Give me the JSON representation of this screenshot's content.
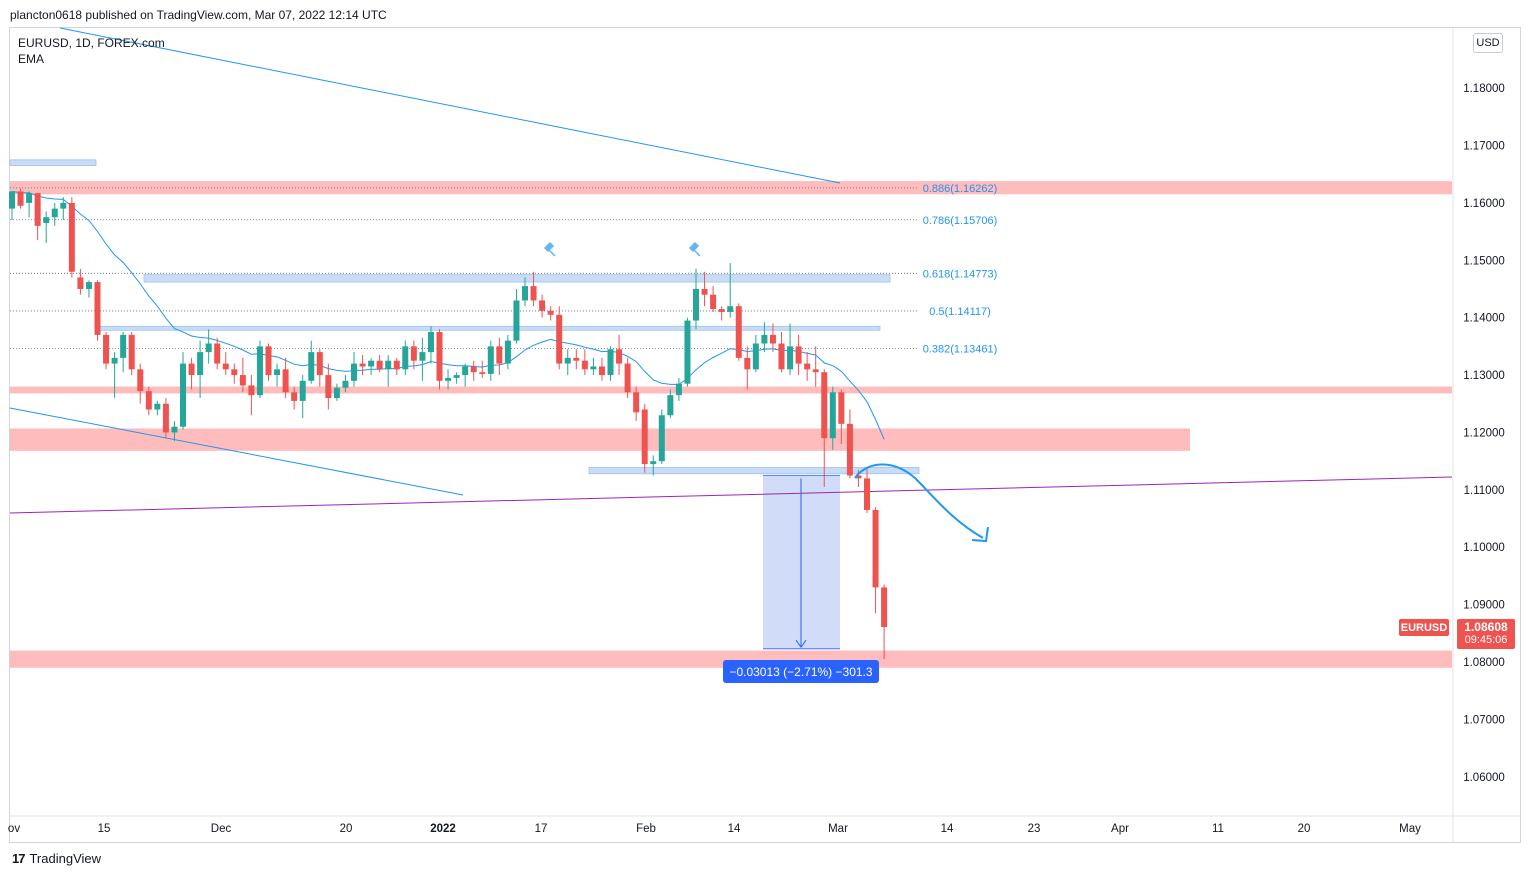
{
  "header": {
    "published": "plancton0618 published on TradingView.com, Mar 07, 2022 12:14 UTC"
  },
  "legend": {
    "symbol": "EURUSD, 1D, FOREX.com",
    "indicator": "EMA"
  },
  "currency_badge": "USD",
  "symbol_label": "EURUSD",
  "last_price": "1.08608",
  "countdown": "09:45:06",
  "measure_label": "−0.03013 (−2.71%) −301.3",
  "footer": {
    "brand": "TradingView"
  },
  "colors": {
    "bull": "#26a69a",
    "bear": "#ef5350",
    "zone_red": "#ffbcbc",
    "zone_blue": "#c8dcf5",
    "line_blue": "#2196f3",
    "line_purple": "#9c27b0",
    "fib": "#2196f3",
    "measure": "#2962ff"
  },
  "chart_data": {
    "type": "candlestick",
    "symbol": "EURUSD",
    "timeframe": "1D",
    "ylim": [
      1.053,
      1.1896
    ],
    "y_ticks": [
      "1.18000",
      "1.17000",
      "1.16000",
      "1.15000",
      "1.14000",
      "1.13000",
      "1.12000",
      "1.11000",
      "1.10000",
      "1.09000",
      "1.08000",
      "1.07000",
      "1.06000"
    ],
    "x_ticks": [
      "ov",
      "15",
      "Dec",
      "20",
      "2022",
      "17",
      "Feb",
      "14",
      "Mar",
      "14",
      "23",
      "Apr",
      "11",
      "20",
      "May"
    ],
    "fib_levels": [
      {
        "label": "0.886(1.16262)",
        "value": 1.16262
      },
      {
        "label": "0.786(1.15706)",
        "value": 1.15706
      },
      {
        "label": "0.618(1.14773)",
        "value": 1.14773
      },
      {
        "label": "0.5(1.14117)",
        "value": 1.14117
      },
      {
        "label": "0.382(1.13461)",
        "value": 1.13461
      }
    ],
    "candles": [
      {
        "o": 1.159,
        "h": 1.162,
        "l": 1.157,
        "c": 1.162
      },
      {
        "o": 1.162,
        "h": 1.1625,
        "l": 1.159,
        "c": 1.1595
      },
      {
        "o": 1.16,
        "h": 1.162,
        "l": 1.1575,
        "c": 1.1617
      },
      {
        "o": 1.1617,
        "h": 1.1617,
        "l": 1.1535,
        "c": 1.156
      },
      {
        "o": 1.1565,
        "h": 1.1585,
        "l": 1.153,
        "c": 1.1575
      },
      {
        "o": 1.1575,
        "h": 1.16,
        "l": 1.156,
        "c": 1.159
      },
      {
        "o": 1.159,
        "h": 1.161,
        "l": 1.157,
        "c": 1.16
      },
      {
        "o": 1.16,
        "h": 1.161,
        "l": 1.147,
        "c": 1.148
      },
      {
        "o": 1.147,
        "h": 1.1485,
        "l": 1.144,
        "c": 1.145
      },
      {
        "o": 1.145,
        "h": 1.1465,
        "l": 1.1435,
        "c": 1.1462
      },
      {
        "o": 1.1462,
        "h": 1.1465,
        "l": 1.136,
        "c": 1.137
      },
      {
        "o": 1.137,
        "h": 1.1375,
        "l": 1.131,
        "c": 1.132
      },
      {
        "o": 1.132,
        "h": 1.134,
        "l": 1.126,
        "c": 1.133
      },
      {
        "o": 1.133,
        "h": 1.1375,
        "l": 1.1305,
        "c": 1.137
      },
      {
        "o": 1.137,
        "h": 1.1375,
        "l": 1.13,
        "c": 1.131
      },
      {
        "o": 1.131,
        "h": 1.132,
        "l": 1.125,
        "c": 1.1272
      },
      {
        "o": 1.1272,
        "h": 1.128,
        "l": 1.123,
        "c": 1.124
      },
      {
        "o": 1.124,
        "h": 1.1255,
        "l": 1.123,
        "c": 1.125
      },
      {
        "o": 1.125,
        "h": 1.126,
        "l": 1.119,
        "c": 1.12
      },
      {
        "o": 1.12,
        "h": 1.122,
        "l": 1.1185,
        "c": 1.121
      },
      {
        "o": 1.121,
        "h": 1.134,
        "l": 1.1205,
        "c": 1.132
      },
      {
        "o": 1.132,
        "h": 1.133,
        "l": 1.1275,
        "c": 1.13
      },
      {
        "o": 1.13,
        "h": 1.136,
        "l": 1.126,
        "c": 1.134
      },
      {
        "o": 1.134,
        "h": 1.138,
        "l": 1.132,
        "c": 1.1355
      },
      {
        "o": 1.1355,
        "h": 1.1365,
        "l": 1.131,
        "c": 1.132
      },
      {
        "o": 1.132,
        "h": 1.134,
        "l": 1.13,
        "c": 1.131
      },
      {
        "o": 1.131,
        "h": 1.132,
        "l": 1.1285,
        "c": 1.13
      },
      {
        "o": 1.13,
        "h": 1.133,
        "l": 1.127,
        "c": 1.1282
      },
      {
        "o": 1.1282,
        "h": 1.13,
        "l": 1.123,
        "c": 1.1265
      },
      {
        "o": 1.1265,
        "h": 1.136,
        "l": 1.126,
        "c": 1.135
      },
      {
        "o": 1.135,
        "h": 1.1355,
        "l": 1.129,
        "c": 1.13
      },
      {
        "o": 1.13,
        "h": 1.132,
        "l": 1.128,
        "c": 1.131
      },
      {
        "o": 1.131,
        "h": 1.133,
        "l": 1.126,
        "c": 1.127
      },
      {
        "o": 1.127,
        "h": 1.128,
        "l": 1.124,
        "c": 1.1255
      },
      {
        "o": 1.1255,
        "h": 1.13,
        "l": 1.1225,
        "c": 1.129
      },
      {
        "o": 1.129,
        "h": 1.136,
        "l": 1.1285,
        "c": 1.134
      },
      {
        "o": 1.134,
        "h": 1.1345,
        "l": 1.128,
        "c": 1.13
      },
      {
        "o": 1.13,
        "h": 1.132,
        "l": 1.124,
        "c": 1.126
      },
      {
        "o": 1.126,
        "h": 1.1285,
        "l": 1.1255,
        "c": 1.1278
      },
      {
        "o": 1.1278,
        "h": 1.13,
        "l": 1.127,
        "c": 1.129
      },
      {
        "o": 1.129,
        "h": 1.134,
        "l": 1.128,
        "c": 1.132
      },
      {
        "o": 1.132,
        "h": 1.1335,
        "l": 1.13,
        "c": 1.1315
      },
      {
        "o": 1.1315,
        "h": 1.133,
        "l": 1.13,
        "c": 1.1325
      },
      {
        "o": 1.1325,
        "h": 1.1335,
        "l": 1.1305,
        "c": 1.131
      },
      {
        "o": 1.131,
        "h": 1.1335,
        "l": 1.128,
        "c": 1.1325
      },
      {
        "o": 1.1325,
        "h": 1.133,
        "l": 1.13,
        "c": 1.131
      },
      {
        "o": 1.131,
        "h": 1.136,
        "l": 1.13,
        "c": 1.135
      },
      {
        "o": 1.135,
        "h": 1.136,
        "l": 1.131,
        "c": 1.1325
      },
      {
        "o": 1.1325,
        "h": 1.1365,
        "l": 1.129,
        "c": 1.134
      },
      {
        "o": 1.134,
        "h": 1.1385,
        "l": 1.132,
        "c": 1.1375
      },
      {
        "o": 1.1375,
        "h": 1.138,
        "l": 1.1275,
        "c": 1.129
      },
      {
        "o": 1.129,
        "h": 1.131,
        "l": 1.1275,
        "c": 1.1295
      },
      {
        "o": 1.1295,
        "h": 1.1305,
        "l": 1.1285,
        "c": 1.13
      },
      {
        "o": 1.13,
        "h": 1.132,
        "l": 1.128,
        "c": 1.1315
      },
      {
        "o": 1.1315,
        "h": 1.1325,
        "l": 1.129,
        "c": 1.1305
      },
      {
        "o": 1.1305,
        "h": 1.1325,
        "l": 1.1295,
        "c": 1.1302
      },
      {
        "o": 1.1302,
        "h": 1.136,
        "l": 1.129,
        "c": 1.135
      },
      {
        "o": 1.135,
        "h": 1.1365,
        "l": 1.13,
        "c": 1.132
      },
      {
        "o": 1.132,
        "h": 1.137,
        "l": 1.131,
        "c": 1.136
      },
      {
        "o": 1.136,
        "h": 1.145,
        "l": 1.1355,
        "c": 1.143
      },
      {
        "o": 1.143,
        "h": 1.147,
        "l": 1.142,
        "c": 1.1455
      },
      {
        "o": 1.1455,
        "h": 1.148,
        "l": 1.142,
        "c": 1.143
      },
      {
        "o": 1.143,
        "h": 1.144,
        "l": 1.14,
        "c": 1.1412
      },
      {
        "o": 1.1412,
        "h": 1.142,
        "l": 1.1395,
        "c": 1.1405
      },
      {
        "o": 1.1405,
        "h": 1.142,
        "l": 1.131,
        "c": 1.132
      },
      {
        "o": 1.132,
        "h": 1.1345,
        "l": 1.13,
        "c": 1.133
      },
      {
        "o": 1.133,
        "h": 1.1345,
        "l": 1.131,
        "c": 1.1325
      },
      {
        "o": 1.1325,
        "h": 1.1345,
        "l": 1.13,
        "c": 1.131
      },
      {
        "o": 1.131,
        "h": 1.133,
        "l": 1.13,
        "c": 1.1315
      },
      {
        "o": 1.1315,
        "h": 1.133,
        "l": 1.129,
        "c": 1.13
      },
      {
        "o": 1.13,
        "h": 1.135,
        "l": 1.129,
        "c": 1.1345
      },
      {
        "o": 1.1345,
        "h": 1.137,
        "l": 1.13,
        "c": 1.132
      },
      {
        "o": 1.132,
        "h": 1.133,
        "l": 1.126,
        "c": 1.127
      },
      {
        "o": 1.127,
        "h": 1.128,
        "l": 1.122,
        "c": 1.1235
      },
      {
        "o": 1.124,
        "h": 1.125,
        "l": 1.113,
        "c": 1.1145
      },
      {
        "o": 1.1145,
        "h": 1.116,
        "l": 1.1125,
        "c": 1.115
      },
      {
        "o": 1.115,
        "h": 1.124,
        "l": 1.1145,
        "c": 1.123
      },
      {
        "o": 1.123,
        "h": 1.1275,
        "l": 1.1225,
        "c": 1.1265
      },
      {
        "o": 1.1265,
        "h": 1.1295,
        "l": 1.1255,
        "c": 1.1285
      },
      {
        "o": 1.1285,
        "h": 1.14,
        "l": 1.128,
        "c": 1.1395
      },
      {
        "o": 1.1395,
        "h": 1.1485,
        "l": 1.138,
        "c": 1.145
      },
      {
        "o": 1.145,
        "h": 1.148,
        "l": 1.142,
        "c": 1.144
      },
      {
        "o": 1.144,
        "h": 1.1455,
        "l": 1.141,
        "c": 1.1415
      },
      {
        "o": 1.1415,
        "h": 1.142,
        "l": 1.1395,
        "c": 1.141
      },
      {
        "o": 1.141,
        "h": 1.1495,
        "l": 1.14,
        "c": 1.142
      },
      {
        "o": 1.142,
        "h": 1.1425,
        "l": 1.1325,
        "c": 1.133
      },
      {
        "o": 1.133,
        "h": 1.135,
        "l": 1.1275,
        "c": 1.131
      },
      {
        "o": 1.131,
        "h": 1.137,
        "l": 1.1305,
        "c": 1.1355
      },
      {
        "o": 1.1355,
        "h": 1.1392,
        "l": 1.134,
        "c": 1.137
      },
      {
        "o": 1.137,
        "h": 1.139,
        "l": 1.134,
        "c": 1.1355
      },
      {
        "o": 1.1355,
        "h": 1.1375,
        "l": 1.1305,
        "c": 1.131
      },
      {
        "o": 1.131,
        "h": 1.139,
        "l": 1.13,
        "c": 1.135
      },
      {
        "o": 1.135,
        "h": 1.137,
        "l": 1.13,
        "c": 1.132
      },
      {
        "o": 1.132,
        "h": 1.134,
        "l": 1.129,
        "c": 1.131
      },
      {
        "o": 1.131,
        "h": 1.135,
        "l": 1.128,
        "c": 1.1305
      },
      {
        "o": 1.1305,
        "h": 1.131,
        "l": 1.1105,
        "c": 1.119
      },
      {
        "o": 1.119,
        "h": 1.128,
        "l": 1.117,
        "c": 1.127
      },
      {
        "o": 1.127,
        "h": 1.1275,
        "l": 1.118,
        "c": 1.1215
      },
      {
        "o": 1.1215,
        "h": 1.124,
        "l": 1.112,
        "c": 1.1125
      },
      {
        "o": 1.1125,
        "h": 1.1135,
        "l": 1.1105,
        "c": 1.112
      },
      {
        "o": 1.112,
        "h": 1.114,
        "l": 1.106,
        "c": 1.1065
      },
      {
        "o": 1.1065,
        "h": 1.107,
        "l": 1.0885,
        "c": 1.093
      },
      {
        "o": 1.093,
        "h": 1.0935,
        "l": 1.0805,
        "c": 1.0861
      }
    ]
  }
}
